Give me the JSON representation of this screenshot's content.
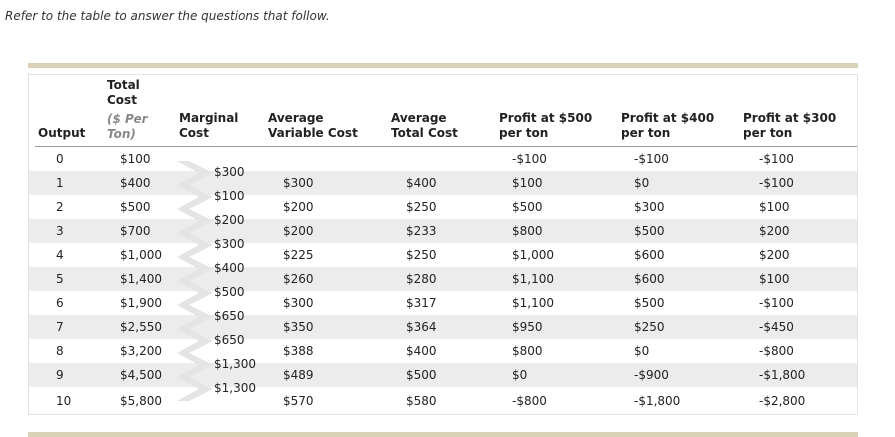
{
  "intro": "Refer to the table to answer the questions that follow.",
  "headers": {
    "output": "Output",
    "total_cost": [
      "Total",
      "Cost"
    ],
    "total_cost_unit": [
      "($ Per",
      "Ton)"
    ],
    "marginal_cost": [
      "Marginal",
      "Cost"
    ],
    "avc": [
      "Average",
      "Variable Cost"
    ],
    "atc": [
      "Average",
      "Total Cost"
    ],
    "p500": [
      "Profit at $500",
      "per ton"
    ],
    "p400": [
      "Profit at $400",
      "per ton"
    ],
    "p300": [
      "Profit at $300",
      "per ton"
    ]
  },
  "rows": [
    {
      "output": "0",
      "tc": "$100",
      "avc": "",
      "atc": "",
      "p500": "-$100",
      "p400": "-$100",
      "p300": "-$100"
    },
    {
      "output": "1",
      "tc": "$400",
      "avc": "$300",
      "atc": "$400",
      "p500": "$100",
      "p400": "$0",
      "p300": "-$100"
    },
    {
      "output": "2",
      "tc": "$500",
      "avc": "$200",
      "atc": "$250",
      "p500": "$500",
      "p400": "$300",
      "p300": "$100"
    },
    {
      "output": "3",
      "tc": "$700",
      "avc": "$200",
      "atc": "$233",
      "p500": "$800",
      "p400": "$500",
      "p300": "$200"
    },
    {
      "output": "4",
      "tc": "$1,000",
      "avc": "$225",
      "atc": "$250",
      "p500": "$1,000",
      "p400": "$600",
      "p300": "$200"
    },
    {
      "output": "5",
      "tc": "$1,400",
      "avc": "$260",
      "atc": "$280",
      "p500": "$1,100",
      "p400": "$600",
      "p300": "$100"
    },
    {
      "output": "6",
      "tc": "$1,900",
      "avc": "$300",
      "atc": "$317",
      "p500": "$1,100",
      "p400": "$500",
      "p300": "-$100"
    },
    {
      "output": "7",
      "tc": "$2,550",
      "avc": "$350",
      "atc": "$364",
      "p500": "$950",
      "p400": "$250",
      "p300": "-$450"
    },
    {
      "output": "8",
      "tc": "$3,200",
      "avc": "$388",
      "atc": "$400",
      "p500": "$800",
      "p400": "$0",
      "p300": "-$800"
    },
    {
      "output": "9",
      "tc": "$4,500",
      "avc": "$489",
      "atc": "$500",
      "p500": "$0",
      "p400": "-$900",
      "p300": "-$1,800"
    },
    {
      "output": "10",
      "tc": "$5,800",
      "avc": "$570",
      "atc": "$580",
      "p500": "-$800",
      "p400": "-$1,800",
      "p300": "-$2,800"
    }
  ],
  "marginal": [
    "$300",
    "$100",
    "$200",
    "$300",
    "$400",
    "$500",
    "$650",
    "$650",
    "$1,300",
    "$1,300"
  ],
  "colors": {
    "rule": "#d9d2b6",
    "alt_row": "#ececec",
    "arrow": "#e4e4e4"
  }
}
